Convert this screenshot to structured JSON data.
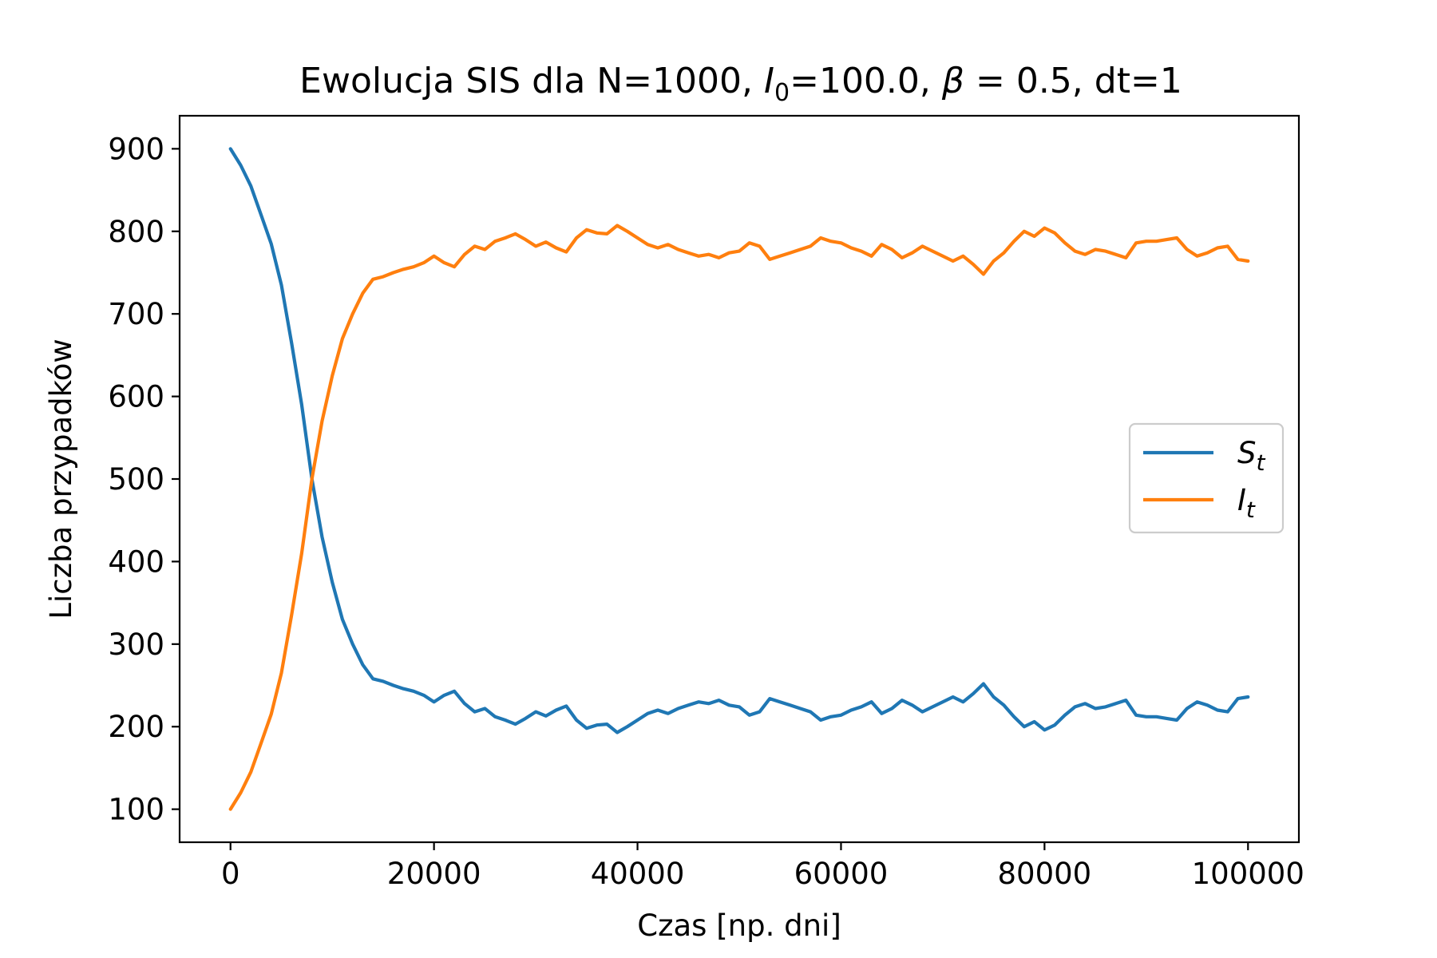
{
  "chart_data": {
    "type": "line",
    "title": {
      "prefix": "Ewolucja SIS dla N=1000, ",
      "i0_symbol": "I",
      "i0_subscript": "0",
      "i0_value": "=100.0, ",
      "beta_symbol": "β",
      "beta_value": " = 0.5, dt=1"
    },
    "xlabel": "Czas [np. dni]",
    "ylabel": "Liczba przypadków",
    "xlim": [
      -5000,
      105000
    ],
    "ylim": [
      60,
      940
    ],
    "xticks": [
      0,
      20000,
      40000,
      60000,
      80000,
      100000
    ],
    "yticks": [
      100,
      200,
      300,
      400,
      500,
      600,
      700,
      800,
      900
    ],
    "legend": {
      "placement": "center-right",
      "entries": [
        {
          "symbol": "S",
          "subscript": "t",
          "color": "#1f77b4"
        },
        {
          "symbol": "I",
          "subscript": "t",
          "color": "#ff7f0e"
        }
      ]
    },
    "series": [
      {
        "name": "S_t",
        "color": "#1f77b4",
        "x": [
          0,
          1000,
          2000,
          3000,
          4000,
          5000,
          6000,
          7000,
          8000,
          9000,
          10000,
          11000,
          12000,
          13000,
          14000,
          15000,
          16000,
          17000,
          18000,
          19000,
          20000,
          21000,
          22000,
          23000,
          24000,
          25000,
          26000,
          27000,
          28000,
          29000,
          30000,
          31000,
          32000,
          33000,
          34000,
          35000,
          36000,
          37000,
          38000,
          39000,
          40000,
          41000,
          42000,
          43000,
          44000,
          45000,
          46000,
          47000,
          48000,
          49000,
          50000,
          51000,
          52000,
          53000,
          54000,
          55000,
          56000,
          57000,
          58000,
          59000,
          60000,
          61000,
          62000,
          63000,
          64000,
          65000,
          66000,
          67000,
          68000,
          69000,
          70000,
          71000,
          72000,
          73000,
          74000,
          75000,
          76000,
          77000,
          78000,
          79000,
          80000,
          81000,
          82000,
          83000,
          84000,
          85000,
          86000,
          87000,
          88000,
          89000,
          90000,
          91000,
          92000,
          93000,
          94000,
          95000,
          96000,
          97000,
          98000,
          99000,
          100000
        ],
        "values": [
          900,
          880,
          855,
          820,
          785,
          735,
          665,
          590,
          500,
          430,
          375,
          330,
          300,
          275,
          258,
          255,
          250,
          246,
          243,
          238,
          230,
          238,
          243,
          228,
          218,
          222,
          212,
          208,
          203,
          210,
          218,
          213,
          220,
          225,
          208,
          198,
          202,
          203,
          193,
          200,
          208,
          216,
          220,
          216,
          222,
          226,
          230,
          228,
          232,
          226,
          224,
          214,
          218,
          234,
          230,
          226,
          222,
          218,
          208,
          212,
          214,
          220,
          224,
          230,
          216,
          222,
          232,
          226,
          218,
          224,
          230,
          236,
          230,
          240,
          252,
          236,
          226,
          212,
          200,
          206,
          196,
          202,
          214,
          224,
          228,
          222,
          224,
          228,
          232,
          214,
          212,
          212,
          210,
          208,
          222,
          230,
          226,
          220,
          218,
          234,
          236
        ]
      },
      {
        "name": "I_t",
        "color": "#ff7f0e",
        "x": [
          0,
          1000,
          2000,
          3000,
          4000,
          5000,
          6000,
          7000,
          8000,
          9000,
          10000,
          11000,
          12000,
          13000,
          14000,
          15000,
          16000,
          17000,
          18000,
          19000,
          20000,
          21000,
          22000,
          23000,
          24000,
          25000,
          26000,
          27000,
          28000,
          29000,
          30000,
          31000,
          32000,
          33000,
          34000,
          35000,
          36000,
          37000,
          38000,
          39000,
          40000,
          41000,
          42000,
          43000,
          44000,
          45000,
          46000,
          47000,
          48000,
          49000,
          50000,
          51000,
          52000,
          53000,
          54000,
          55000,
          56000,
          57000,
          58000,
          59000,
          60000,
          61000,
          62000,
          63000,
          64000,
          65000,
          66000,
          67000,
          68000,
          69000,
          70000,
          71000,
          72000,
          73000,
          74000,
          75000,
          76000,
          77000,
          78000,
          79000,
          80000,
          81000,
          82000,
          83000,
          84000,
          85000,
          86000,
          87000,
          88000,
          89000,
          90000,
          91000,
          92000,
          93000,
          94000,
          95000,
          96000,
          97000,
          98000,
          99000,
          100000
        ],
        "values": [
          100,
          120,
          145,
          180,
          215,
          265,
          335,
          410,
          500,
          570,
          625,
          670,
          700,
          725,
          742,
          745,
          750,
          754,
          757,
          762,
          770,
          762,
          757,
          772,
          782,
          778,
          788,
          792,
          797,
          790,
          782,
          787,
          780,
          775,
          792,
          802,
          798,
          797,
          807,
          800,
          792,
          784,
          780,
          784,
          778,
          774,
          770,
          772,
          768,
          774,
          776,
          786,
          782,
          766,
          770,
          774,
          778,
          782,
          792,
          788,
          786,
          780,
          776,
          770,
          784,
          778,
          768,
          774,
          782,
          776,
          770,
          764,
          770,
          760,
          748,
          764,
          774,
          788,
          800,
          794,
          804,
          798,
          786,
          776,
          772,
          778,
          776,
          772,
          768,
          786,
          788,
          788,
          790,
          792,
          778,
          770,
          774,
          780,
          782,
          766,
          764
        ]
      }
    ]
  }
}
